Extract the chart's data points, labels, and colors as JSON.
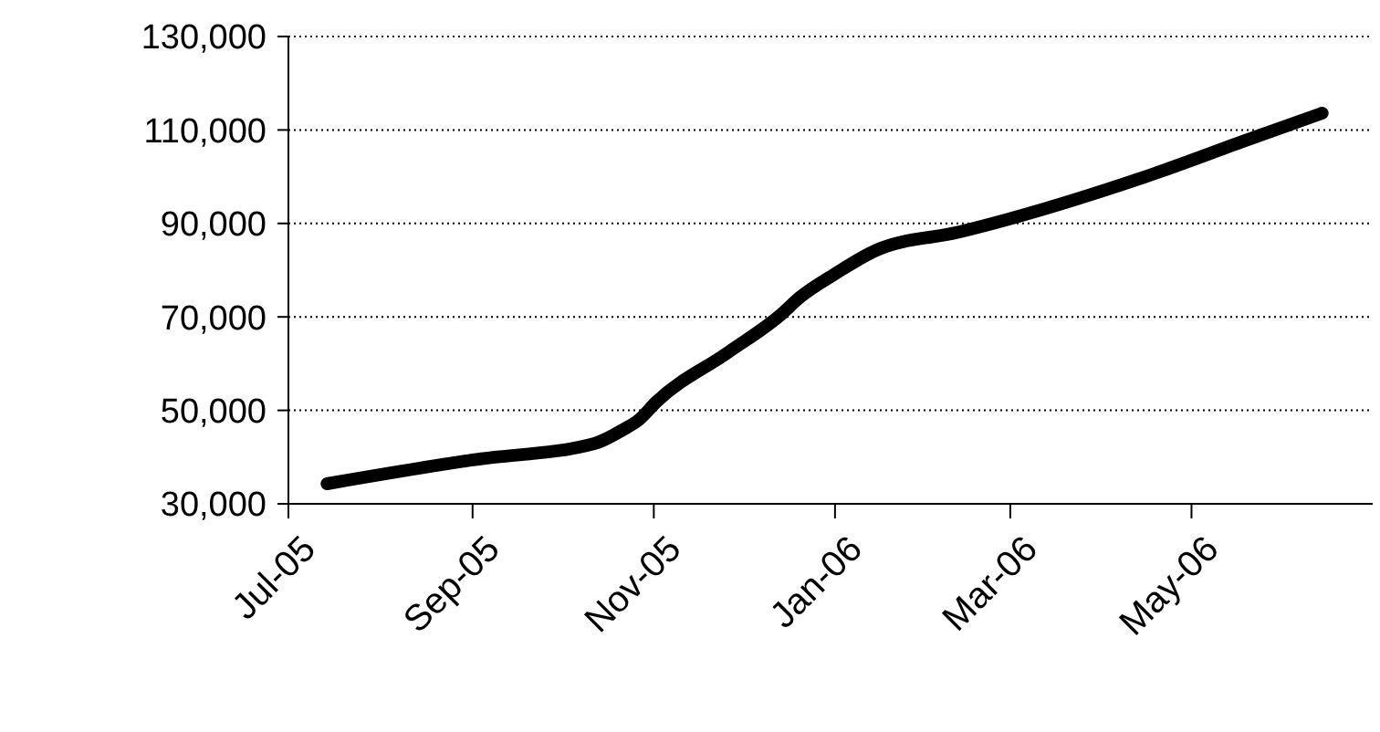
{
  "chart_data": {
    "type": "line",
    "x": [
      "2005-07-14",
      "2005-09-01",
      "2005-10-12",
      "2005-10-22",
      "2005-10-27",
      "2005-11-02",
      "2005-11-26",
      "2005-12-14",
      "2005-12-20",
      "2006-01-01",
      "2006-01-15",
      "2006-02-12",
      "2006-04-15",
      "2006-05-19",
      "2006-06-14"
    ],
    "series": [
      {
        "color": "#000000",
        "values": [
          34300,
          39400,
          42900,
          46000,
          48000,
          51900,
          62400,
          70600,
          74100,
          79200,
          84300,
          88200,
          99900,
          107700,
          113600
        ]
      }
    ],
    "xlim": [
      "2005-07-01",
      "2006-07-01"
    ],
    "xticks": [
      {
        "value": "2005-07-01",
        "label": "Jul-05"
      },
      {
        "value": "2005-09-01",
        "label": "Sep-05"
      },
      {
        "value": "2005-11-01",
        "label": "Nov-05"
      },
      {
        "value": "2006-01-01",
        "label": "Jan-06"
      },
      {
        "value": "2006-03-01",
        "label": "Mar-06"
      },
      {
        "value": "2006-05-01",
        "label": "May-06"
      }
    ],
    "ylim": [
      30000,
      130000
    ],
    "yticks": [
      {
        "value": 30000,
        "label": "30,000"
      },
      {
        "value": 50000,
        "label": "50,000"
      },
      {
        "value": 70000,
        "label": "70,000"
      },
      {
        "value": 90000,
        "label": "90,000"
      },
      {
        "value": 110000,
        "label": "110,000"
      },
      {
        "value": 130000,
        "label": "130,000"
      }
    ],
    "grid": "y",
    "marker": "none",
    "line_style": "solid"
  }
}
